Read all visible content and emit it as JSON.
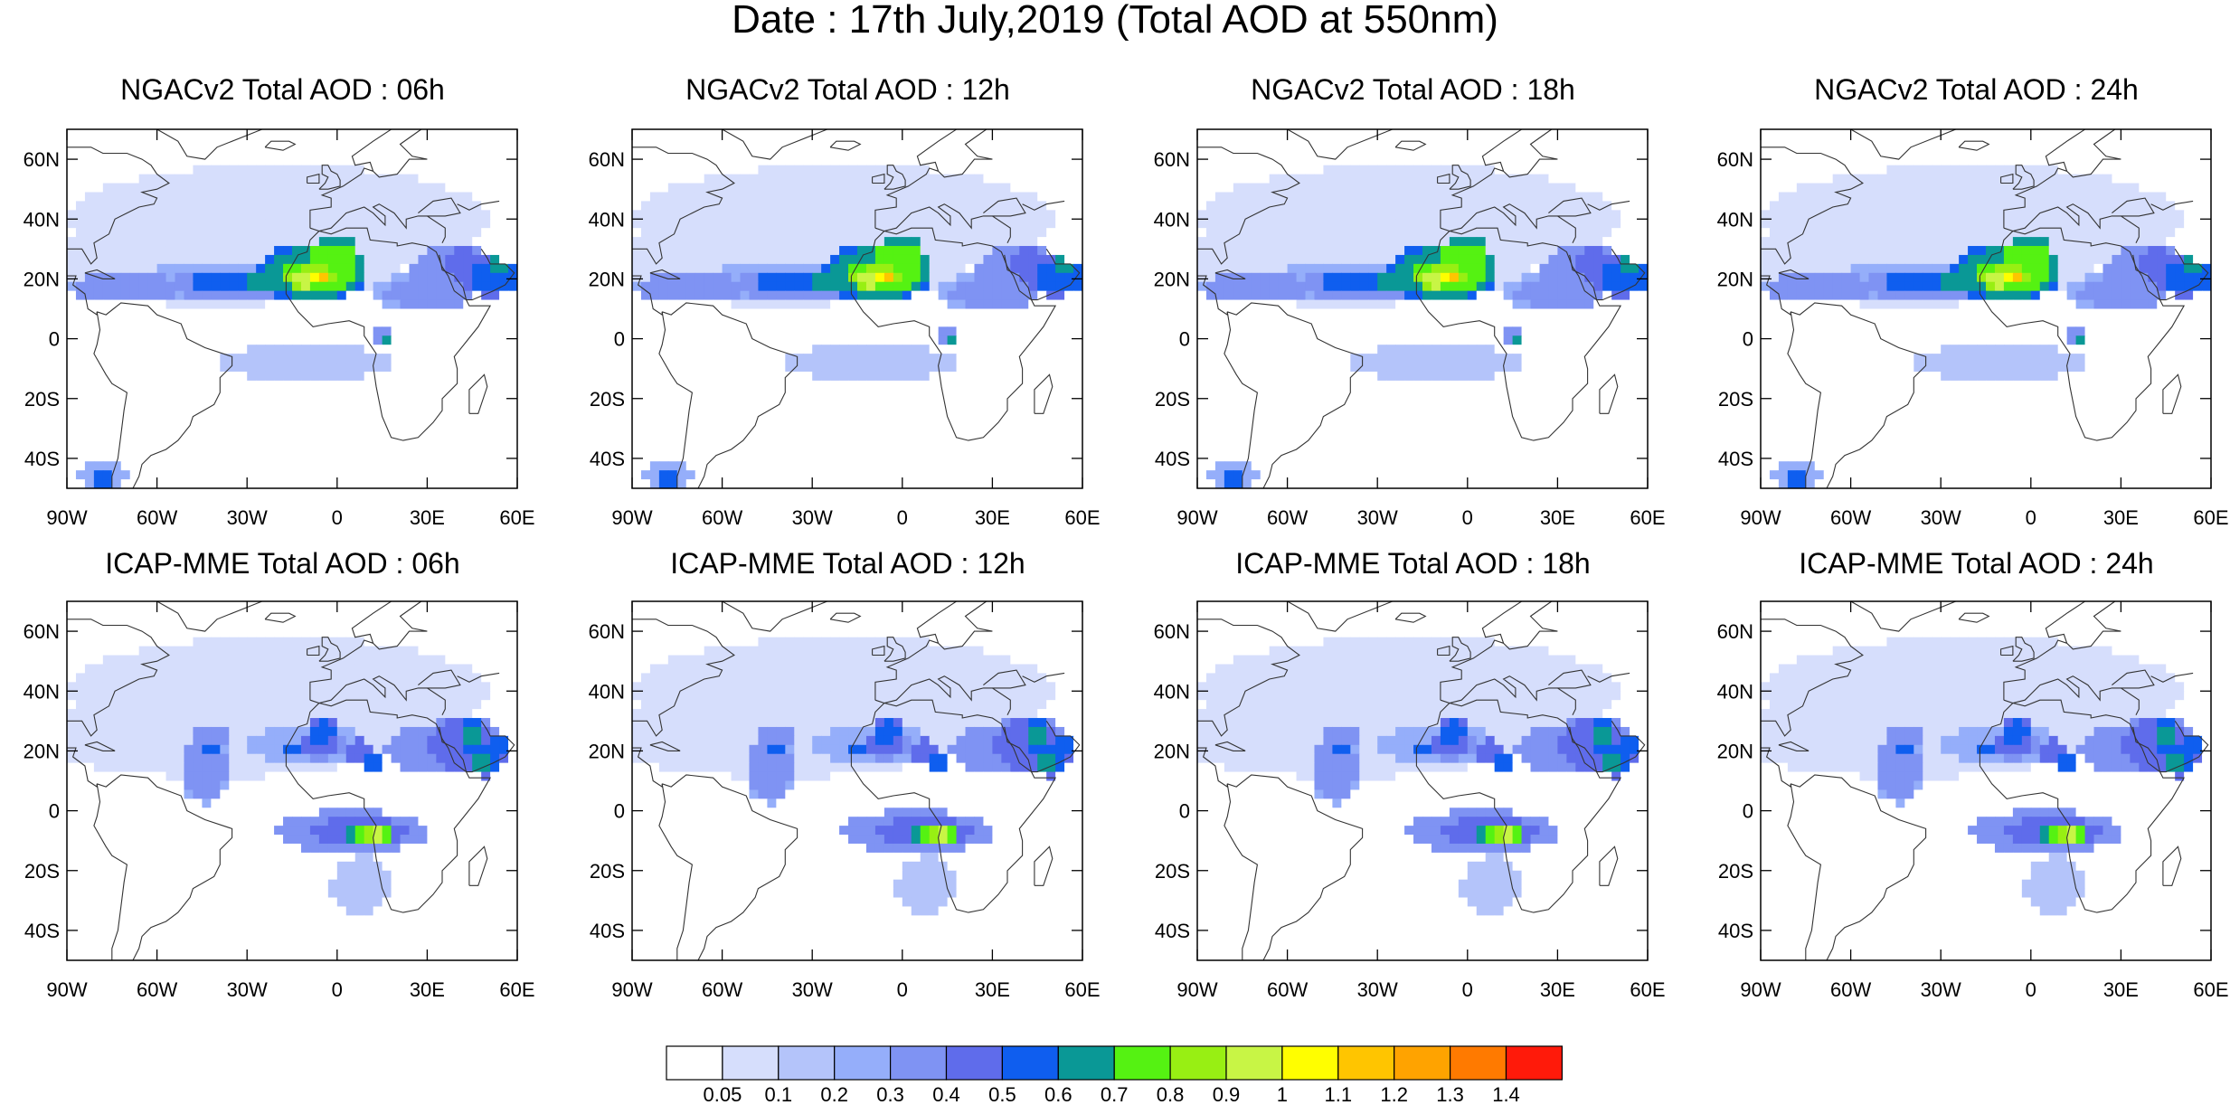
{
  "figure": {
    "title": "Date : 17th July,2019 (Total AOD at 550nm)"
  },
  "map_extent": {
    "lon_range": [
      -90,
      60
    ],
    "lat_range": [
      -50,
      70
    ],
    "lon_ticks": [
      -90,
      -60,
      -30,
      0,
      30,
      60
    ],
    "lon_tick_labels": [
      "90W",
      "60W",
      "30W",
      "0",
      "30E",
      "60E"
    ],
    "lat_ticks": [
      60,
      40,
      20,
      0,
      -20,
      -40
    ],
    "lat_tick_labels": [
      "60N",
      "40N",
      "20N",
      "0",
      "20S",
      "40S"
    ]
  },
  "panels": [
    {
      "title": "NGACv2 Total AOD : 06h",
      "model": "NGACv2",
      "lead": "06h"
    },
    {
      "title": "NGACv2 Total AOD : 12h",
      "model": "NGACv2",
      "lead": "12h"
    },
    {
      "title": "NGACv2 Total AOD : 18h",
      "model": "NGACv2",
      "lead": "18h"
    },
    {
      "title": "NGACv2 Total AOD : 24h",
      "model": "NGACv2",
      "lead": "24h"
    },
    {
      "title": "ICAP-MME Total AOD : 06h",
      "model": "ICAP-MME",
      "lead": "06h"
    },
    {
      "title": "ICAP-MME Total AOD : 12h",
      "model": "ICAP-MME",
      "lead": "12h"
    },
    {
      "title": "ICAP-MME Total AOD : 18h",
      "model": "ICAP-MME",
      "lead": "18h"
    },
    {
      "title": "ICAP-MME Total AOD : 24h",
      "model": "ICAP-MME",
      "lead": "24h"
    }
  ],
  "colorbar": {
    "labels": [
      "0.05",
      "0.1",
      "0.2",
      "0.3",
      "0.4",
      "0.5",
      "0.6",
      "0.7",
      "0.8",
      "0.9",
      "1",
      "1.1",
      "1.2",
      "1.3",
      "1.4"
    ],
    "colors": [
      "#ffffff",
      "#d6defc",
      "#b4c4fa",
      "#95aefa",
      "#7f93f3",
      "#5f6ceb",
      "#0f5eef",
      "#0a9896",
      "#55f212",
      "#98ef13",
      "#c8f545",
      "#fffe00",
      "#ffc500",
      "#ffa300",
      "#ff7a00",
      "#ff1a0a"
    ]
  }
}
